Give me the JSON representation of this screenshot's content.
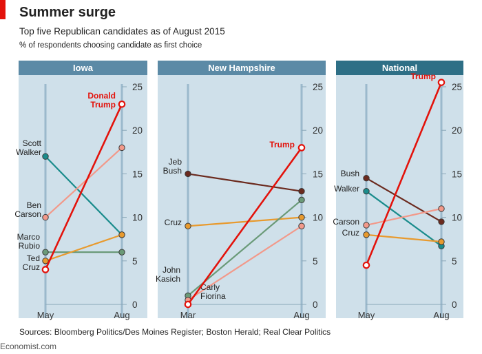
{
  "title": "Summer surge",
  "subtitle": "Top five Republican candidates as of August 2015",
  "unit_note": "% of respondents choosing candidate as first choice",
  "source": "Sources: Bloomberg Politics/Des Moines Register; Boston Herald; Real Clear Politics",
  "brand": "Economist.com",
  "colors": {
    "background": "#cfe0ea",
    "panel_header": "#5b8aa6",
    "panel_header_national": "#2e6f86",
    "axis_line": "#9bb9cc",
    "trump": "#e3120b",
    "walker": "#1a8c8c",
    "carson": "#f2998a",
    "rubio": "#6a9a78",
    "cruz": "#e89a2e",
    "bush": "#6b2a1e",
    "kasich": "#6a9a78",
    "fiorina": "#f2998a",
    "brand_red": "#e3120b"
  },
  "chart_data": [
    {
      "type": "line",
      "title": "Iowa",
      "x": [
        "May",
        "Aug"
      ],
      "ylim": [
        0,
        25
      ],
      "yticks": [
        0,
        5,
        10,
        15,
        20,
        25
      ],
      "series": [
        {
          "name": "Scott Walker",
          "values": [
            17,
            8
          ],
          "color_key": "walker"
        },
        {
          "name": "Ben Carson",
          "values": [
            10,
            18
          ],
          "color_key": "carson"
        },
        {
          "name": "Marco Rubio",
          "values": [
            6,
            6
          ],
          "color_key": "rubio"
        },
        {
          "name": "Ted Cruz",
          "values": [
            5,
            8
          ],
          "color_key": "cruz"
        },
        {
          "name": "Donald Trump",
          "values": [
            4,
            23
          ],
          "color_key": "trump"
        }
      ]
    },
    {
      "type": "line",
      "title": "New Hampshire",
      "x": [
        "Mar",
        "Aug"
      ],
      "ylim": [
        0,
        25
      ],
      "yticks": [
        0,
        5,
        10,
        15,
        20,
        25
      ],
      "series": [
        {
          "name": "Jeb Bush",
          "values": [
            15,
            13
          ],
          "color_key": "bush"
        },
        {
          "name": "Cruz",
          "values": [
            9,
            10
          ],
          "color_key": "cruz"
        },
        {
          "name": "John Kasich",
          "values": [
            1,
            12
          ],
          "color_key": "kasich"
        },
        {
          "name": "Carly Fiorina",
          "values": [
            0.5,
            9
          ],
          "color_key": "fiorina"
        },
        {
          "name": "Trump",
          "values": [
            0,
            18
          ],
          "color_key": "trump"
        }
      ]
    },
    {
      "type": "line",
      "title": "National",
      "x": [
        "May",
        "Aug"
      ],
      "ylim": [
        0,
        25
      ],
      "yticks": [
        0,
        5,
        10,
        15,
        20,
        25
      ],
      "series": [
        {
          "name": "Bush",
          "values": [
            14.5,
            9.5
          ],
          "color_key": "bush"
        },
        {
          "name": "Walker",
          "values": [
            13,
            6.7
          ],
          "color_key": "walker"
        },
        {
          "name": "Carson",
          "values": [
            9.1,
            11
          ],
          "color_key": "carson"
        },
        {
          "name": "Cruz",
          "values": [
            8,
            7.2
          ],
          "color_key": "cruz"
        },
        {
          "name": "Trump",
          "values": [
            4.5,
            25.5
          ],
          "color_key": "trump"
        }
      ]
    }
  ]
}
